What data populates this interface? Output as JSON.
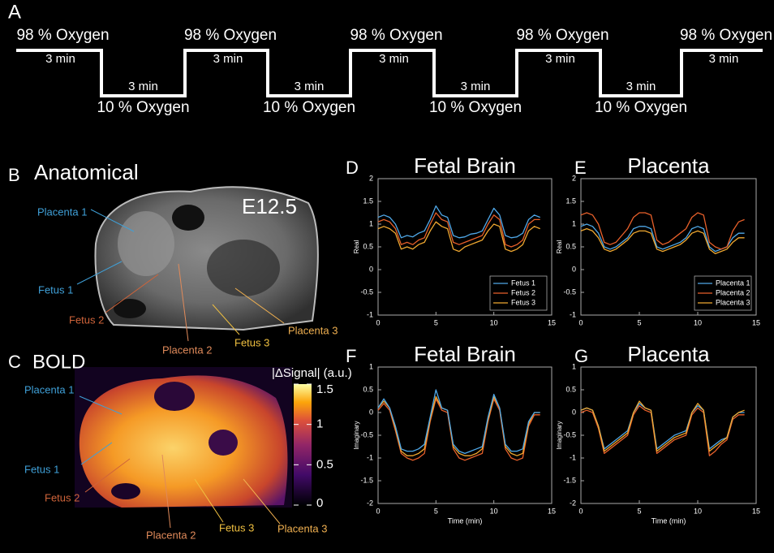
{
  "panel_a": {
    "label": "A",
    "segments": [
      {
        "label": "98 % Oxygen",
        "duration": "3 min",
        "level": "high"
      },
      {
        "label": "10 % Oxygen",
        "duration": "3 min",
        "level": "low"
      },
      {
        "label": "98 % Oxygen",
        "duration": "3 min",
        "level": "high"
      },
      {
        "label": "10 % Oxygen",
        "duration": "3 min",
        "level": "low"
      },
      {
        "label": "98 % Oxygen",
        "duration": "3 min",
        "level": "high"
      },
      {
        "label": "10 % Oxygen",
        "duration": "3 min",
        "level": "low"
      },
      {
        "label": "98 % Oxygen",
        "duration": "3 min",
        "level": "high"
      },
      {
        "label": "10 % Oxygen",
        "duration": "3 min",
        "level": "low"
      },
      {
        "label": "98 % Oxygen",
        "duration": "3 min",
        "level": "high"
      }
    ]
  },
  "panel_b": {
    "label": "B",
    "title": "Anatomical",
    "stage": "E12.5",
    "annotations": [
      {
        "text": "Placenta 1",
        "color": "#3fa0d8"
      },
      {
        "text": "Fetus 1",
        "color": "#3fa0d8"
      },
      {
        "text": "Fetus 2",
        "color": "#d0643a"
      },
      {
        "text": "Placenta 2",
        "color": "#e08a5a"
      },
      {
        "text": "Fetus 3",
        "color": "#f0c040"
      },
      {
        "text": "Placenta 3",
        "color": "#f0b050"
      }
    ]
  },
  "panel_c": {
    "label": "C",
    "title": "BOLD",
    "colorbar": {
      "label": "|ΔSignal|  (a.u.)",
      "ticks": [
        0,
        0.5,
        1,
        1.5
      ]
    },
    "annotations": [
      {
        "text": "Placenta 1",
        "color": "#3fa0d8"
      },
      {
        "text": "Fetus 1",
        "color": "#3fa0d8"
      },
      {
        "text": "Fetus 2",
        "color": "#d0643a"
      },
      {
        "text": "Placenta 2",
        "color": "#e08a5a"
      },
      {
        "text": "Fetus 3",
        "color": "#f0c040"
      },
      {
        "text": "Placenta 3",
        "color": "#f0b050"
      }
    ]
  },
  "chart_data": [
    {
      "type": "line",
      "panel": "D",
      "title": "Fetal Brain",
      "ylabel": "Real",
      "xlim": [
        0,
        15
      ],
      "xticks": [
        0,
        5,
        10,
        15
      ],
      "ylim": [
        -1,
        2
      ],
      "yticks": [
        -1,
        -0.5,
        0,
        0.5,
        1,
        1.5,
        2
      ],
      "legend": "lower right",
      "x": [
        0,
        0.5,
        1,
        1.5,
        2,
        2.5,
        3,
        3.5,
        4,
        4.5,
        5,
        5.5,
        6,
        6.5,
        7,
        7.5,
        8,
        8.5,
        9,
        9.5,
        10,
        10.5,
        11,
        11.5,
        12,
        12.5,
        13,
        13.5,
        14
      ],
      "series": [
        {
          "name": "Fetus 1",
          "color": "#4fa8e8",
          "values": [
            1.15,
            1.2,
            1.15,
            1.0,
            0.7,
            0.75,
            0.72,
            0.8,
            0.85,
            1.1,
            1.4,
            1.2,
            1.15,
            0.75,
            0.7,
            0.72,
            0.78,
            0.8,
            0.85,
            1.1,
            1.35,
            1.2,
            0.75,
            0.7,
            0.72,
            0.8,
            1.1,
            1.2,
            1.15
          ]
        },
        {
          "name": "Fetus 2",
          "color": "#e8602a",
          "values": [
            1.05,
            1.1,
            1.05,
            0.9,
            0.55,
            0.6,
            0.55,
            0.65,
            0.7,
            1.0,
            1.25,
            1.1,
            1.05,
            0.6,
            0.55,
            0.6,
            0.65,
            0.7,
            0.75,
            1.0,
            1.2,
            1.1,
            0.55,
            0.5,
            0.55,
            0.65,
            1.0,
            1.1,
            1.1
          ]
        },
        {
          "name": "Fetus 3",
          "color": "#f0a830",
          "values": [
            0.9,
            0.95,
            0.9,
            0.8,
            0.45,
            0.5,
            0.45,
            0.55,
            0.6,
            0.85,
            1.05,
            0.95,
            0.9,
            0.45,
            0.4,
            0.5,
            0.55,
            0.6,
            0.65,
            0.85,
            1.0,
            0.95,
            0.45,
            0.4,
            0.45,
            0.55,
            0.85,
            0.95,
            0.9
          ]
        }
      ]
    },
    {
      "type": "line",
      "panel": "E",
      "title": "Placenta",
      "ylabel": "Real",
      "xlim": [
        0,
        15
      ],
      "xticks": [
        0,
        5,
        10,
        15
      ],
      "ylim": [
        -1,
        2
      ],
      "yticks": [
        -1,
        -0.5,
        0,
        0.5,
        1,
        1.5,
        2
      ],
      "legend": "lower right",
      "x": [
        0,
        0.5,
        1,
        1.5,
        2,
        2.5,
        3,
        3.5,
        4,
        4.5,
        5,
        5.5,
        6,
        6.5,
        7,
        7.5,
        8,
        8.5,
        9,
        9.5,
        10,
        10.5,
        11,
        11.5,
        12,
        12.5,
        13,
        13.5,
        14
      ],
      "series": [
        {
          "name": "Placenta 1",
          "color": "#4fa8e8",
          "values": [
            0.95,
            1.0,
            0.95,
            0.8,
            0.5,
            0.45,
            0.5,
            0.6,
            0.7,
            0.9,
            0.95,
            0.95,
            0.9,
            0.5,
            0.45,
            0.5,
            0.55,
            0.6,
            0.7,
            0.9,
            0.95,
            0.9,
            0.5,
            0.4,
            0.45,
            0.5,
            0.7,
            0.8,
            0.8
          ]
        },
        {
          "name": "Placenta 2",
          "color": "#e8602a",
          "values": [
            1.2,
            1.25,
            1.2,
            1.0,
            0.6,
            0.55,
            0.6,
            0.75,
            0.9,
            1.15,
            1.25,
            1.25,
            1.2,
            0.65,
            0.55,
            0.6,
            0.7,
            0.8,
            0.9,
            1.15,
            1.25,
            1.2,
            0.6,
            0.5,
            0.45,
            0.5,
            0.85,
            1.05,
            1.1
          ]
        },
        {
          "name": "Placenta 3",
          "color": "#f0a830",
          "values": [
            0.85,
            0.9,
            0.85,
            0.7,
            0.45,
            0.4,
            0.45,
            0.55,
            0.65,
            0.8,
            0.85,
            0.85,
            0.8,
            0.45,
            0.4,
            0.45,
            0.5,
            0.55,
            0.65,
            0.8,
            0.85,
            0.8,
            0.45,
            0.35,
            0.4,
            0.45,
            0.6,
            0.7,
            0.7
          ]
        }
      ]
    },
    {
      "type": "line",
      "panel": "F",
      "title": "Fetal Brain",
      "ylabel": "Imaginary",
      "xlabel": "Time (min)",
      "xlim": [
        0,
        15
      ],
      "xticks": [
        0,
        5,
        10,
        15
      ],
      "ylim": [
        -2,
        1
      ],
      "yticks": [
        -2,
        -1.5,
        -1,
        -0.5,
        0,
        0.5,
        1
      ],
      "x": [
        0,
        0.5,
        1,
        1.5,
        2,
        2.5,
        3,
        3.5,
        4,
        4.5,
        5,
        5.5,
        6,
        6.5,
        7,
        7.5,
        8,
        8.5,
        9,
        9.5,
        10,
        10.5,
        11,
        11.5,
        12,
        12.5,
        13,
        13.5,
        14
      ],
      "series": [
        {
          "color": "#e8602a",
          "values": [
            0.05,
            0.2,
            0.05,
            -0.4,
            -0.9,
            -1.0,
            -1.05,
            -1.0,
            -0.9,
            -0.2,
            0.3,
            0.05,
            0.0,
            -0.8,
            -1.0,
            -1.05,
            -1.0,
            -0.95,
            -0.9,
            -0.2,
            0.3,
            0.05,
            -0.8,
            -1.0,
            -1.05,
            -1.0,
            -0.3,
            -0.05,
            -0.05
          ]
        },
        {
          "color": "#f0a830",
          "values": [
            0.1,
            0.25,
            0.1,
            -0.35,
            -0.85,
            -0.95,
            -0.95,
            -0.9,
            -0.8,
            -0.15,
            0.35,
            0.1,
            0.05,
            -0.75,
            -0.9,
            -0.95,
            -0.95,
            -0.9,
            -0.8,
            -0.15,
            0.35,
            0.1,
            -0.75,
            -0.9,
            -0.95,
            -0.9,
            -0.25,
            0.0,
            0.0
          ]
        },
        {
          "color": "#4fa8e8",
          "values": [
            0.1,
            0.3,
            0.1,
            -0.3,
            -0.8,
            -0.85,
            -0.85,
            -0.8,
            -0.7,
            -0.1,
            0.5,
            0.1,
            0.05,
            -0.7,
            -0.85,
            -0.9,
            -0.85,
            -0.8,
            -0.75,
            -0.1,
            0.4,
            0.1,
            -0.7,
            -0.85,
            -0.85,
            -0.8,
            -0.2,
            0.0,
            0.0
          ]
        }
      ]
    },
    {
      "type": "line",
      "panel": "G",
      "title": "Placenta",
      "ylabel": "Imaginary",
      "xlabel": "Time (min)",
      "xlim": [
        0,
        15
      ],
      "xticks": [
        0,
        5,
        10,
        15
      ],
      "ylim": [
        -2,
        1
      ],
      "yticks": [
        -2,
        -1.5,
        -1,
        -0.5,
        0,
        0.5,
        1
      ],
      "x": [
        0,
        0.5,
        1,
        1.5,
        2,
        2.5,
        3,
        3.5,
        4,
        4.5,
        5,
        5.5,
        6,
        6.5,
        7,
        7.5,
        8,
        8.5,
        9,
        9.5,
        10,
        10.5,
        11,
        11.5,
        12,
        12.5,
        13,
        13.5,
        14
      ],
      "series": [
        {
          "color": "#e8602a",
          "values": [
            0.0,
            0.05,
            0.0,
            -0.35,
            -0.9,
            -0.8,
            -0.7,
            -0.6,
            -0.5,
            -0.05,
            0.15,
            0.05,
            0.0,
            -0.9,
            -0.8,
            -0.7,
            -0.6,
            -0.55,
            -0.5,
            -0.05,
            0.1,
            0.0,
            -0.95,
            -0.85,
            -0.7,
            -0.6,
            -0.15,
            -0.05,
            -0.05
          ]
        },
        {
          "color": "#4fa8e8",
          "values": [
            0.05,
            0.1,
            0.05,
            -0.3,
            -0.8,
            -0.7,
            -0.6,
            -0.5,
            -0.4,
            0.0,
            0.2,
            0.1,
            0.05,
            -0.8,
            -0.7,
            -0.6,
            -0.5,
            -0.45,
            -0.4,
            0.0,
            0.15,
            0.05,
            -0.8,
            -0.7,
            -0.6,
            -0.55,
            -0.1,
            0.0,
            0.0
          ]
        },
        {
          "color": "#f0a830",
          "values": [
            0.05,
            0.1,
            0.05,
            -0.3,
            -0.85,
            -0.75,
            -0.65,
            -0.55,
            -0.45,
            0.0,
            0.25,
            0.1,
            0.05,
            -0.85,
            -0.75,
            -0.65,
            -0.55,
            -0.5,
            -0.45,
            0.0,
            0.2,
            0.05,
            -0.85,
            -0.75,
            -0.65,
            -0.55,
            -0.1,
            0.0,
            0.05
          ]
        }
      ]
    }
  ]
}
